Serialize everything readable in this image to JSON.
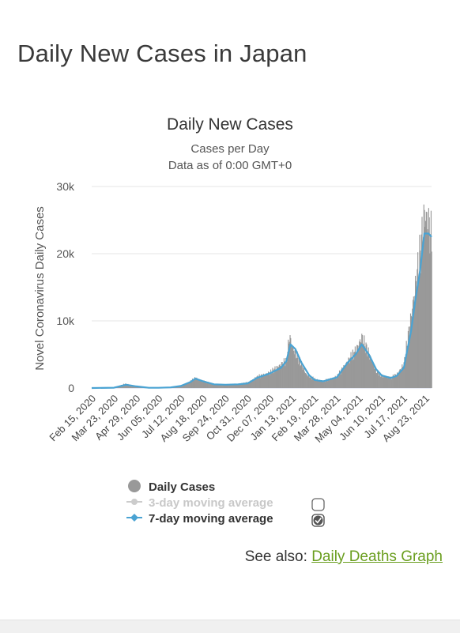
{
  "page": {
    "title": "Daily New Cases in Japan"
  },
  "see_also": {
    "prefix": "See also:",
    "link_text": "Daily Deaths Graph"
  },
  "colors": {
    "bars": "#999999",
    "ma7": "#4aa3d3",
    "ma3": "#c8c8c8",
    "grid": "#e6e6e6",
    "link": "#6a9e1f"
  },
  "chart_data": {
    "type": "bar",
    "title": "Daily New Cases",
    "subtitle_lines": [
      "Cases per Day",
      "Data as of 0:00 GMT+0"
    ],
    "ylabel": "Novel Coronavirus Daily Cases",
    "xlabel": "",
    "ylim": [
      0,
      30000
    ],
    "y_ticks": [
      0,
      10000,
      20000,
      30000
    ],
    "y_tick_labels": [
      "0",
      "10k",
      "20k",
      "30k"
    ],
    "x_range": [
      "2020-02-15",
      "2021-09-01"
    ],
    "x_tick_labels": [
      "Feb 15, 2020",
      "Mar 23, 2020",
      "Apr 29, 2020",
      "Jun 05, 2020",
      "Jul 12, 2020",
      "Aug 18, 2020",
      "Sep 24, 2020",
      "Oct 31, 2020",
      "Dec 07, 2020",
      "Jan 13, 2021",
      "Feb 19, 2021",
      "Mar 28, 2021",
      "May 04, 2021",
      "Jun 10, 2021",
      "Jul 17, 2021",
      "Aug 23, 2021"
    ],
    "grid": true,
    "legend_position": "bottom",
    "series": [
      {
        "name": "Daily Cases",
        "kind": "bar",
        "points": [
          [
            "2020-02-15",
            10
          ],
          [
            "2020-03-23",
            60
          ],
          [
            "2020-04-10",
            600
          ],
          [
            "2020-04-20",
            450
          ],
          [
            "2020-04-29",
            200
          ],
          [
            "2020-05-15",
            50
          ],
          [
            "2020-06-05",
            40
          ],
          [
            "2020-06-25",
            100
          ],
          [
            "2020-07-12",
            300
          ],
          [
            "2020-07-25",
            800
          ],
          [
            "2020-08-05",
            1500
          ],
          [
            "2020-08-18",
            1000
          ],
          [
            "2020-09-05",
            550
          ],
          [
            "2020-09-24",
            500
          ],
          [
            "2020-10-15",
            600
          ],
          [
            "2020-10-31",
            800
          ],
          [
            "2020-11-15",
            1600
          ],
          [
            "2020-12-07",
            2300
          ],
          [
            "2020-12-25",
            3500
          ],
          [
            "2021-01-03",
            4000
          ],
          [
            "2021-01-08",
            7700
          ],
          [
            "2021-01-13",
            6000
          ],
          [
            "2021-01-25",
            4000
          ],
          [
            "2021-02-05",
            2000
          ],
          [
            "2021-02-19",
            1300
          ],
          [
            "2021-03-05",
            1000
          ],
          [
            "2021-03-28",
            1700
          ],
          [
            "2021-04-15",
            4000
          ],
          [
            "2021-04-28",
            5500
          ],
          [
            "2021-05-08",
            7500
          ],
          [
            "2021-05-20",
            5000
          ],
          [
            "2021-06-01",
            2500
          ],
          [
            "2021-06-10",
            1800
          ],
          [
            "2021-06-25",
            1500
          ],
          [
            "2021-07-05",
            2000
          ],
          [
            "2021-07-17",
            3500
          ],
          [
            "2021-07-29",
            10700
          ],
          [
            "2021-08-05",
            15000
          ],
          [
            "2021-08-13",
            20000
          ],
          [
            "2021-08-20",
            25800
          ],
          [
            "2021-08-27",
            24500
          ],
          [
            "2021-09-01",
            22000
          ]
        ]
      },
      {
        "name": "3-day moving average",
        "kind": "line",
        "hidden": true
      },
      {
        "name": "7-day moving average",
        "kind": "line",
        "points": [
          [
            "2020-02-15",
            0
          ],
          [
            "2020-03-23",
            50
          ],
          [
            "2020-04-12",
            500
          ],
          [
            "2020-04-29",
            250
          ],
          [
            "2020-05-20",
            40
          ],
          [
            "2020-06-05",
            40
          ],
          [
            "2020-06-25",
            90
          ],
          [
            "2020-07-12",
            300
          ],
          [
            "2020-07-28",
            900
          ],
          [
            "2020-08-05",
            1400
          ],
          [
            "2020-08-18",
            1000
          ],
          [
            "2020-09-05",
            550
          ],
          [
            "2020-09-24",
            500
          ],
          [
            "2020-10-15",
            550
          ],
          [
            "2020-10-31",
            700
          ],
          [
            "2020-11-15",
            1500
          ],
          [
            "2020-12-07",
            2200
          ],
          [
            "2020-12-25",
            3000
          ],
          [
            "2021-01-03",
            4000
          ],
          [
            "2021-01-10",
            6500
          ],
          [
            "2021-01-18",
            5800
          ],
          [
            "2021-01-28",
            3800
          ],
          [
            "2021-02-10",
            1900
          ],
          [
            "2021-02-19",
            1200
          ],
          [
            "2021-03-05",
            1000
          ],
          [
            "2021-03-28",
            1600
          ],
          [
            "2021-04-15",
            3800
          ],
          [
            "2021-04-28",
            5000
          ],
          [
            "2021-05-08",
            6500
          ],
          [
            "2021-05-20",
            5000
          ],
          [
            "2021-06-01",
            2800
          ],
          [
            "2021-06-10",
            1900
          ],
          [
            "2021-06-25",
            1500
          ],
          [
            "2021-07-05",
            1800
          ],
          [
            "2021-07-17",
            3000
          ],
          [
            "2021-07-29",
            8500
          ],
          [
            "2021-08-05",
            13000
          ],
          [
            "2021-08-13",
            17500
          ],
          [
            "2021-08-20",
            23000
          ],
          [
            "2021-08-27",
            23000
          ],
          [
            "2021-09-01",
            22500
          ]
        ]
      }
    ],
    "legend": [
      {
        "label": "Daily Cases",
        "enabled": true,
        "checkbox": false
      },
      {
        "label": "3-day moving average",
        "enabled": false,
        "checkbox": true,
        "checked": false
      },
      {
        "label": "7-day moving average",
        "enabled": true,
        "checkbox": true,
        "checked": true
      }
    ]
  }
}
